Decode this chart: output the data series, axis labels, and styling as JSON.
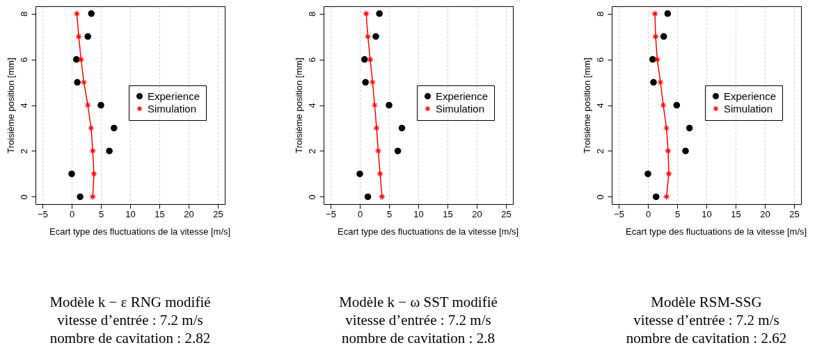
{
  "chart_data": [
    {
      "type": "scatter",
      "xlabel": "Ecart type des fluctuations de la vitesse [m/s]",
      "ylabel": "Troisième position [mm]",
      "xlim": [
        -6.2,
        26.2
      ],
      "ylim": [
        -0.32,
        8.32
      ],
      "xticks": [
        -5,
        0,
        5,
        10,
        15,
        20,
        25
      ],
      "yticks": [
        0,
        2,
        4,
        6,
        8
      ],
      "grid": "x",
      "legend": "right",
      "series": [
        {
          "name": "Experience",
          "type": "scatter",
          "marker": "circle",
          "color": "#000000",
          "x": [
            1.44,
            0,
            6.44,
            7.24,
            5.0,
            0.96,
            0.8,
            2.76,
            3.36
          ],
          "values": [
            0,
            1,
            2,
            3,
            4,
            5,
            6,
            7,
            8
          ]
        },
        {
          "name": "Simulation",
          "type": "line",
          "marker": "cross",
          "color": "#ff0000",
          "x": [
            3.6,
            3.8,
            3.6,
            3.32,
            2.76,
            2.08,
            1.6,
            1.2,
            0.88
          ],
          "values": [
            0,
            1,
            2,
            3,
            4,
            5,
            6,
            7,
            8
          ]
        }
      ],
      "annotations": [
        "Modèle k − ε RNG modifié",
        "vitesse d’entrée : 7.2 m/s",
        "nombre de cavitation : 2.82"
      ]
    },
    {
      "type": "scatter",
      "xlabel": "Ecart type des fluctuations de la vitesse [m/s]",
      "ylabel": "Troisième position [mm]",
      "xlim": [
        -6.2,
        26.2
      ],
      "ylim": [
        -0.32,
        8.32
      ],
      "xticks": [
        -5,
        0,
        5,
        10,
        15,
        20,
        25
      ],
      "yticks": [
        0,
        2,
        4,
        6,
        8
      ],
      "grid": "x",
      "legend": "right",
      "series": [
        {
          "name": "Experience",
          "type": "scatter",
          "marker": "circle",
          "color": "#000000",
          "x": [
            1.37,
            0,
            6.5,
            7.2,
            5.0,
            0.97,
            0.8,
            2.74,
            3.35
          ],
          "values": [
            0,
            1,
            2,
            3,
            4,
            5,
            6,
            7,
            8
          ]
        },
        {
          "name": "Simulation",
          "type": "line",
          "marker": "cross",
          "color": "#ff0000",
          "x": [
            3.79,
            3.47,
            3.15,
            2.86,
            2.54,
            2.18,
            1.77,
            1.37,
            1.09
          ],
          "values": [
            0,
            1,
            2,
            3,
            4,
            5,
            6,
            7,
            8
          ]
        }
      ],
      "annotations": [
        "Modèle k − ω SST modifié",
        "vitesse d’entrée : 7.2 m/s",
        "nombre de cavitation : 2.8"
      ]
    },
    {
      "type": "scatter",
      "xlabel": "Ecart type des fluctuations de la vitesse [m/s]",
      "ylabel": "Troisième position [mm]",
      "xlim": [
        -6.2,
        26.2
      ],
      "ylim": [
        -0.32,
        8.32
      ],
      "xticks": [
        -5,
        0,
        5,
        10,
        15,
        20,
        25
      ],
      "yticks": [
        0,
        2,
        4,
        6,
        8
      ],
      "grid": "x",
      "legend": "right",
      "series": [
        {
          "name": "Experience",
          "type": "scatter",
          "marker": "circle",
          "color": "#000000",
          "x": [
            1.39,
            0,
            6.43,
            7.1,
            4.92,
            0.95,
            0.8,
            2.7,
            3.37
          ],
          "values": [
            0,
            1,
            2,
            3,
            4,
            5,
            6,
            7,
            8
          ]
        },
        {
          "name": "Simulation",
          "type": "line",
          "marker": "cross",
          "color": "#ff0000",
          "x": [
            3.17,
            3.57,
            3.45,
            3.17,
            2.62,
            2.14,
            1.59,
            1.31,
            1.19
          ],
          "values": [
            0,
            1,
            2,
            3,
            4,
            5,
            6,
            7,
            8
          ]
        }
      ],
      "annotations": [
        "Modèle RSM-SSG",
        "vitesse d’entrée : 7.2 m/s",
        "nombre de cavitation : 2.62"
      ]
    }
  ]
}
